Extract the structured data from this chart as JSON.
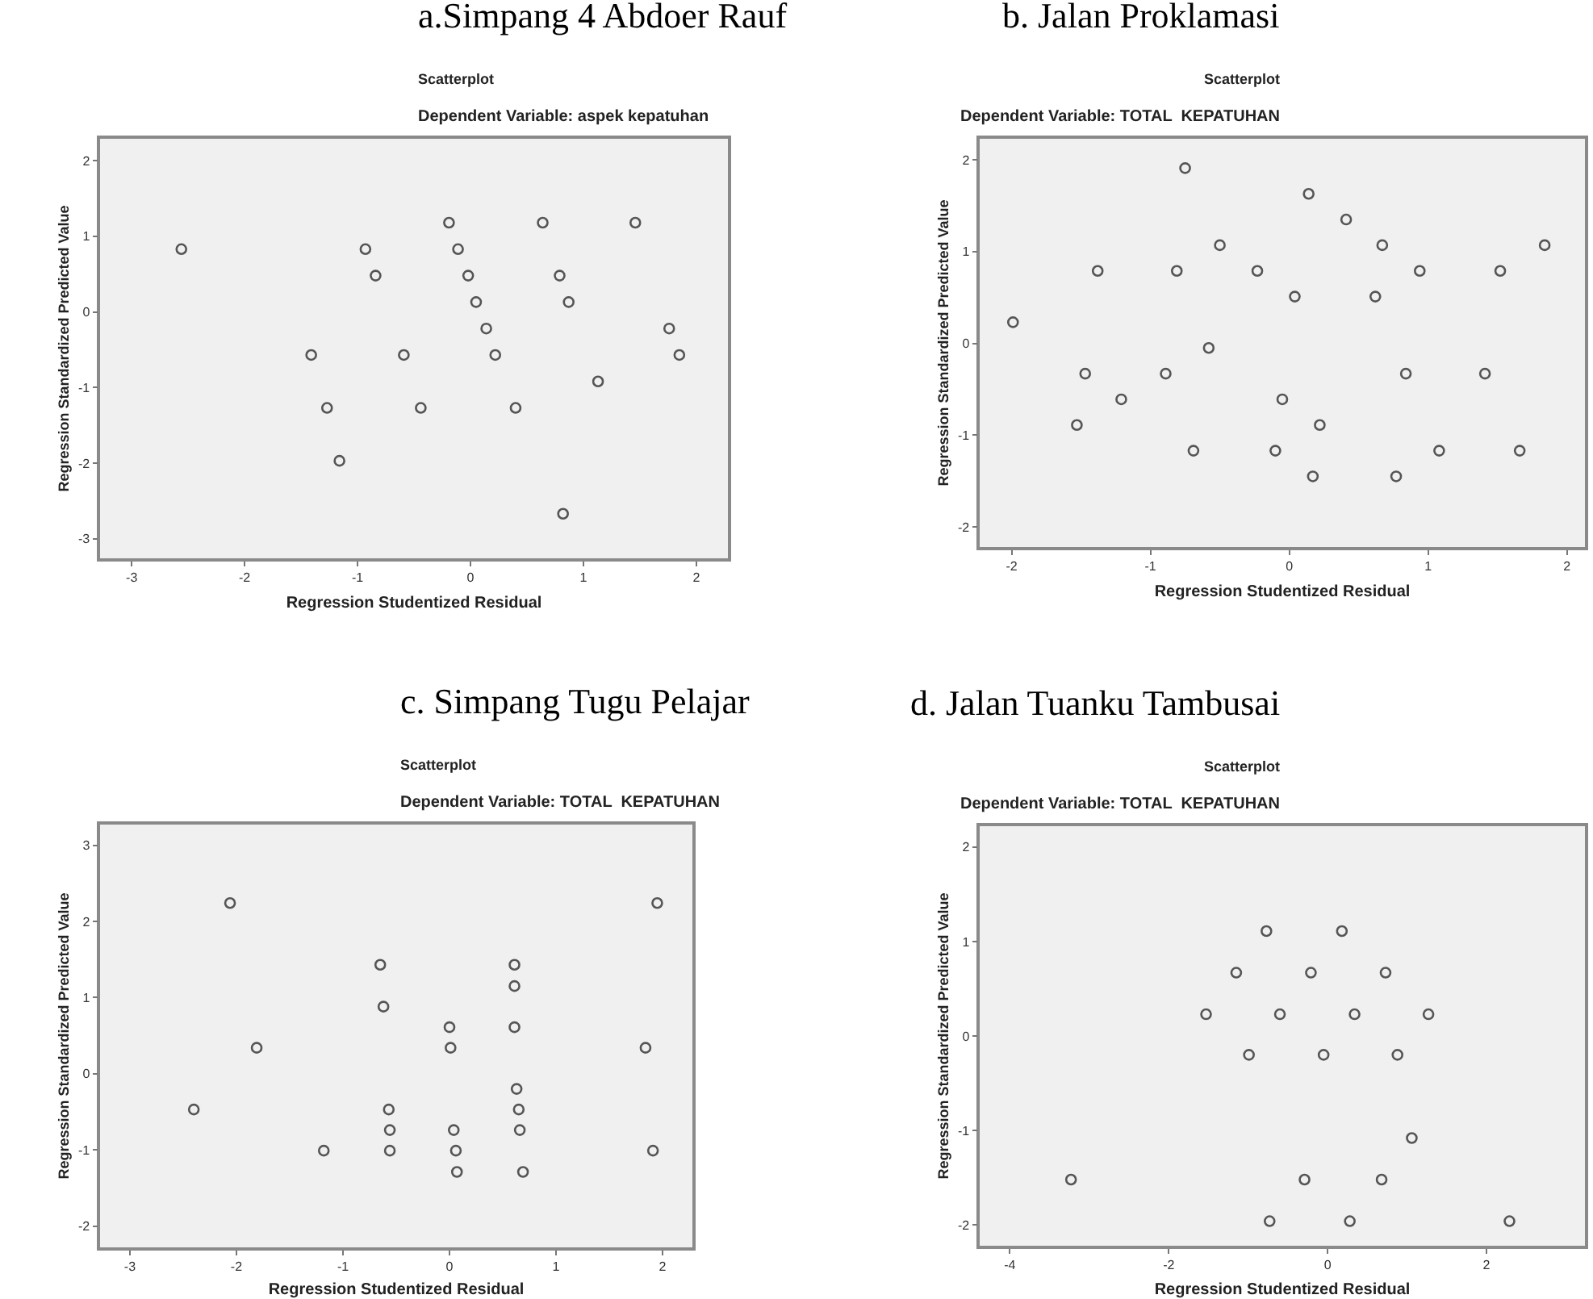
{
  "chart_data": [
    {
      "type": "scatter",
      "title": "Scatterplot",
      "subtitle": "Dependent Variable: aspek kepatuhan",
      "annotations": [
        "a.Simpang 4 Abdoer Rauf"
      ],
      "xlabel": "Regression Studentized Residual",
      "ylabel": "Regression Standardized Predicted Value",
      "xlim": [
        -3.28,
        2.28
      ],
      "ylim": [
        -3.26,
        2.29
      ],
      "xticks": [
        -3,
        -2,
        -1,
        0,
        1,
        2
      ],
      "yticks": [
        -3,
        -2,
        -1,
        0,
        1,
        2
      ],
      "grid": false,
      "marker": "circle",
      "series": [
        {
          "color": "#555555",
          "x": [
            -2.56,
            -0.19,
            0.64,
            1.46,
            -0.93,
            -0.11,
            -0.84,
            -0.02,
            0.79,
            0.05,
            0.87,
            0.14,
            1.76,
            -1.41,
            -0.59,
            0.22,
            1.85,
            1.13,
            -1.27,
            -0.44,
            0.4,
            -1.16,
            0.82
          ],
          "values": [
            0.83,
            1.18,
            1.18,
            1.18,
            0.83,
            0.83,
            0.48,
            0.48,
            0.48,
            0.13,
            0.13,
            -0.22,
            -0.22,
            -0.57,
            -0.57,
            -0.57,
            -0.57,
            -0.92,
            -1.27,
            -1.27,
            -1.27,
            -1.97,
            -2.67
          ]
        }
      ]
    },
    {
      "type": "scatter",
      "title": "Scatterplot",
      "subtitle": "Dependent Variable: TOTAL  KEPATUHAN",
      "annotations": [
        "b. Jalan Proklamasi"
      ],
      "xlabel": "Regression Studentized Residual",
      "ylabel": "Regression Standardized Predicted Value",
      "xlim": [
        -2.23,
        2.13
      ],
      "ylim": [
        -2.22,
        2.23
      ],
      "xticks": [
        -2,
        -1,
        0,
        1,
        2
      ],
      "yticks": [
        -2,
        -1,
        0,
        1,
        2
      ],
      "grid": false,
      "marker": "circle",
      "series": [
        {
          "color": "#555555",
          "x": [
            -1.99,
            -0.75,
            0.14,
            0.41,
            -0.5,
            0.67,
            1.84,
            -1.38,
            -0.81,
            -0.23,
            0.94,
            1.52,
            0.04,
            0.62,
            -0.58,
            -1.47,
            -0.89,
            0.84,
            1.41,
            -1.21,
            -0.05,
            -1.53,
            0.22,
            -0.69,
            -0.1,
            1.08,
            1.66,
            0.17,
            0.77
          ],
          "values": [
            0.23,
            1.91,
            1.63,
            1.35,
            1.07,
            1.07,
            1.07,
            0.79,
            0.79,
            0.79,
            0.79,
            0.79,
            0.51,
            0.51,
            -0.05,
            -0.33,
            -0.33,
            -0.33,
            -0.33,
            -0.61,
            -0.61,
            -0.89,
            -0.89,
            -1.17,
            -1.17,
            -1.17,
            -1.17,
            -1.45,
            -1.45
          ]
        }
      ]
    },
    {
      "type": "scatter",
      "title": "Scatterplot",
      "subtitle": "Dependent Variable: TOTAL  KEPATUHAN",
      "annotations": [
        "c. Simpang Tugu Pelajar"
      ],
      "xlabel": "Regression Studentized Residual",
      "ylabel": "Regression Standardized Predicted Value",
      "xlim": [
        -3.28,
        2.28
      ],
      "ylim": [
        -2.28,
        3.27
      ],
      "xticks": [
        -3,
        -2,
        -1,
        0,
        1,
        2
      ],
      "yticks": [
        -2,
        -1,
        0,
        1,
        2,
        3
      ],
      "grid": false,
      "marker": "circle",
      "series": [
        {
          "color": "#555555",
          "x": [
            -2.06,
            1.95,
            -0.65,
            0.61,
            0.61,
            -0.62,
            0.0,
            0.61,
            -1.81,
            0.01,
            1.84,
            0.63,
            -2.4,
            -0.57,
            0.65,
            -0.56,
            0.04,
            0.66,
            -1.18,
            -0.56,
            0.06,
            1.91,
            0.07,
            0.69
          ],
          "values": [
            2.24,
            2.24,
            1.43,
            1.43,
            1.15,
            0.88,
            0.61,
            0.61,
            0.34,
            0.34,
            0.34,
            -0.2,
            -0.47,
            -0.47,
            -0.47,
            -0.74,
            -0.74,
            -0.74,
            -1.01,
            -1.01,
            -1.01,
            -1.01,
            -1.29,
            -1.29
          ]
        }
      ]
    },
    {
      "type": "scatter",
      "title": "Scatterplot",
      "subtitle": "Dependent Variable: TOTAL  KEPATUHAN",
      "annotations": [
        "d. Jalan Tuanku Tambusai"
      ],
      "xlabel": "Regression Studentized Residual",
      "ylabel": "Regression Standardized Predicted Value",
      "xlim": [
        -4.38,
        3.24
      ],
      "ylim": [
        -2.22,
        2.22
      ],
      "xticks": [
        -4,
        -2,
        0,
        2
      ],
      "yticks": [
        -2,
        -1,
        0,
        1,
        2
      ],
      "grid": false,
      "marker": "circle",
      "series": [
        {
          "color": "#555555",
          "x": [
            -0.77,
            0.18,
            -1.15,
            -0.21,
            0.73,
            -1.53,
            -0.6,
            0.34,
            1.27,
            -0.99,
            -0.05,
            0.88,
            1.06,
            -3.23,
            -0.29,
            0.68,
            -0.73,
            0.28,
            2.29
          ],
          "values": [
            1.11,
            1.11,
            0.67,
            0.67,
            0.67,
            0.23,
            0.23,
            0.23,
            0.23,
            -0.2,
            -0.2,
            -0.2,
            -1.08,
            -1.52,
            -1.52,
            -1.52,
            -1.96,
            -1.96,
            -1.96
          ]
        }
      ]
    }
  ]
}
